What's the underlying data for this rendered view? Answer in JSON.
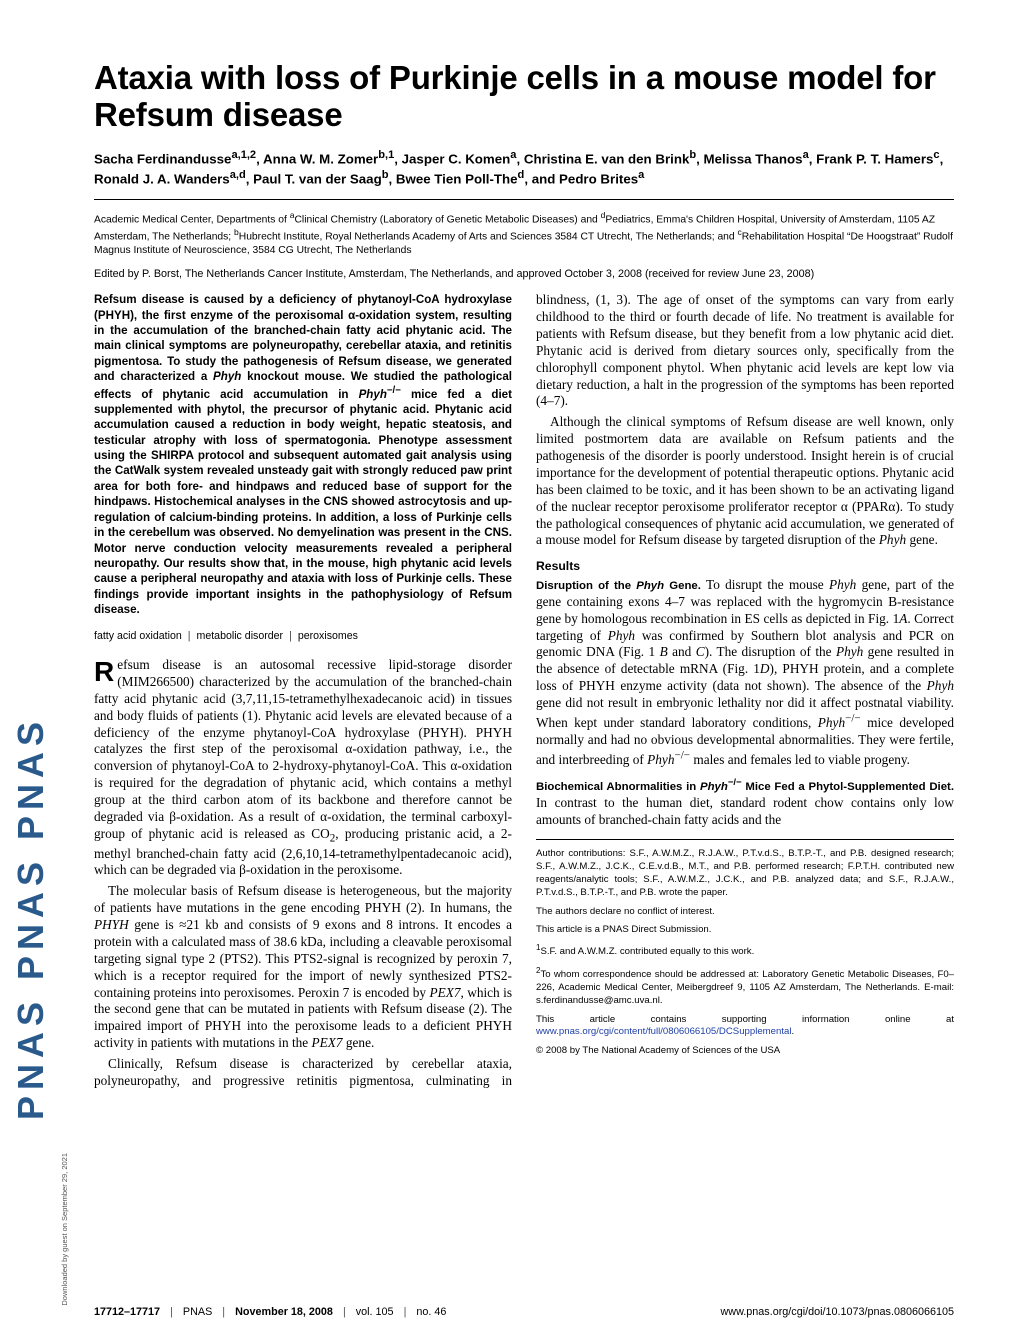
{
  "banner_text": "PNAS   PNAS   PNAS",
  "title": "Ataxia with loss of Purkinje cells in a mouse model for Refsum disease",
  "authors_html": "Sacha Ferdinandusse<sup>a,1,2</sup>, Anna W. M. Zomer<sup>b,1</sup>, Jasper C. Komen<sup>a</sup>, Christina E. van den Brink<sup>b</sup>, Melissa Thanos<sup>a</sup>, Frank P. T. Hamers<sup>c</sup>, Ronald J. A. Wanders<sup>a,d</sup>, Paul T. van der Saag<sup>b</sup>, Bwee Tien Poll-The<sup>d</sup>, and Pedro Brites<sup>a</sup>",
  "affiliations_html": "Academic Medical Center, Departments of <sup>a</sup>Clinical Chemistry (Laboratory of Genetic Metabolic Diseases) and <sup>d</sup>Pediatrics, Emma's Children Hospital, University of Amsterdam, 1105 AZ Amsterdam, The Netherlands; <sup>b</sup>Hubrecht Institute, Royal Netherlands Academy of Arts and Sciences 3584 CT Utrecht, The Netherlands; and <sup>c</sup>Rehabilitation Hospital &ldquo;De Hoogstraat&rdquo; Rudolf Magnus Institute of Neuroscience, 3584 CG Utrecht, The Netherlands",
  "edited_line": "Edited by P. Borst, The Netherlands Cancer Institute, Amsterdam, The Netherlands, and approved October 3, 2008 (received for review June 23, 2008)",
  "abstract_html": "Refsum disease is caused by a deficiency of phytanoyl-CoA hydroxylase (PHYH), the first enzyme of the peroxisomal &alpha;-oxidation system, resulting in the accumulation of the branched-chain fatty acid phytanic acid. The main clinical symptoms are polyneuropathy, cerebellar ataxia, and retinitis pigmentosa. To study the pathogenesis of Refsum disease, we generated and characterized a <i>Phyh</i> knockout mouse. We studied the pathological effects of phytanic acid accumulation in <i>Phyh</i><sup>&minus;/&minus;</sup> mice fed a diet supplemented with phytol, the precursor of phytanic acid. Phytanic acid accumulation caused a reduction in body weight, hepatic steatosis, and testicular atrophy with loss of spermatogonia. Phenotype assessment using the SHIRPA protocol and subsequent automated gait analysis using the CatWalk system revealed unsteady gait with strongly reduced paw print area for both fore- and hindpaws and reduced base of support for the hindpaws. Histochemical analyses in the CNS showed astrocytosis and up-regulation of calcium-binding proteins. In addition, a loss of Purkinje cells in the cerebellum was observed. No demyelination was present in the CNS. Motor nerve conduction velocity measurements revealed a peripheral neuropathy. Our results show that, in the mouse, high phytanic acid levels cause a peripheral neuropathy and ataxia with loss of Purkinje cells. These findings provide important insights in the pathophysiology of Refsum disease.",
  "keywords": [
    "fatty acid oxidation",
    "metabolic disorder",
    "peroxisomes"
  ],
  "body": {
    "p1_html": "<span class='dropcap'>R</span>efsum disease is an autosomal recessive lipid-storage disorder (MIM266500) characterized by the accumulation of the branched-chain fatty acid phytanic acid (3,7,11,15-tetramethylhexadecanoic acid) in tissues and body fluids of patients (1). Phytanic acid levels are elevated because of a deficiency of the enzyme phytanoyl-CoA hydroxylase (PHYH). PHYH catalyzes the first step of the peroxisomal &alpha;-oxidation pathway, i.e., the conversion of phytanoyl-CoA to 2-hydroxy-phytanoyl-CoA. This &alpha;-oxidation is required for the degradation of phytanic acid, which contains a methyl group at the third carbon atom of its backbone and therefore cannot be degraded via &beta;-oxidation. As a result of &alpha;-oxidation, the terminal carboxyl-group of phytanic acid is released as CO<sub>2</sub>, producing pristanic acid, a 2-methyl branched-chain fatty acid (2,6,10,14-tetramethylpentadecanoic acid), which can be degraded via &beta;-oxidation in the peroxisome.",
    "p2_html": "The molecular basis of Refsum disease is heterogeneous, but the majority of patients have mutations in the gene encoding PHYH (2). In humans, the <i>PHYH</i> gene is &asymp;21 kb and consists of 9 exons and 8 introns. It encodes a protein with a calculated mass of 38.6 kDa, including a cleavable peroxisomal targeting signal type 2 (PTS2). This PTS2-signal is recognized by peroxin 7, which is a receptor required for the import of newly synthesized PTS2-containing proteins into peroxisomes. Peroxin 7 is encoded by <i>PEX7</i>, which is the second gene that can be mutated in patients with Refsum disease (2). The impaired import of PHYH into the peroxisome leads to a deficient PHYH activity in patients with mutations in the <i>PEX7</i> gene.",
    "p3_html": "Clinically, Refsum disease is characterized by cerebellar ataxia, polyneuropathy, and progressive retinitis pigmentosa, culminating in blindness, (1, 3). The age of onset of the symptoms can vary from early childhood to the third or fourth decade of life. No treatment is available for patients with Refsum disease, but they benefit from a low phytanic acid diet. Phytanic acid is derived from dietary sources only, specifically from the chlorophyll component phytol. When phytanic acid levels are kept low via dietary reduction, a halt in the progression of the symptoms has been reported (4&ndash;7).",
    "p4_html": "Although the clinical symptoms of Refsum disease are well known, only limited postmortem data are available on Refsum patients and the pathogenesis of the disorder is poorly understood. Insight herein is of crucial importance for the development of potential therapeutic options. Phytanic acid has been claimed to be toxic, and it has been shown to be an activating ligand of the nuclear receptor peroxisome proliferator receptor &alpha; (PPAR&alpha;). To study the pathological consequences of phytanic acid accumulation, we generated of a mouse model for Refsum disease by targeted disruption of the <i>Phyh</i> gene.",
    "results_label": "Results",
    "sub1_label_html": "Disruption of the <i>Phyh</i> Gene.",
    "sub1_body_html": " To disrupt the mouse <i>Phyh</i> gene, part of the gene containing exons 4&ndash;7 was replaced with the hygromycin B-resistance gene by homologous recombination in ES cells as depicted in Fig. 1<i>A</i>. Correct targeting of <i>Phyh</i> was confirmed by Southern blot analysis and PCR on genomic DNA (Fig. 1 <i>B</i> and <i>C</i>). The disruption of the <i>Phyh</i> gene resulted in the absence of detectable mRNA (Fig. 1<i>D</i>), PHYH protein, and a complete loss of PHYH enzyme activity (data not shown). The absence of the <i>Phyh</i> gene did not result in embryonic lethality nor did it affect postnatal viability. When kept under standard laboratory conditions, <i>Phyh</i><sup>&minus;/&minus;</sup> mice developed normally and had no obvious developmental abnormalities. They were fertile, and interbreeding of <i>Phyh</i><sup>&minus;/&minus;</sup> males and females led to viable progeny.",
    "sub2_label_html": "Biochemical Abnormalities in <i>Phyh</i><sup>&minus;/&minus;</sup> Mice Fed a Phytol-Supplemented Diet.",
    "sub2_body_html": " In contrast to the human diet, standard rodent chow contains only low amounts of branched-chain fatty acids and the"
  },
  "footnotes": {
    "author_contrib": "Author contributions: S.F., A.W.M.Z., R.J.A.W., P.T.v.d.S., B.T.P.-T., and P.B. designed research; S.F., A.W.M.Z., J.C.K., C.E.v.d.B., M.T., and P.B. performed research; F.P.T.H. contributed new reagents/analytic tools; S.F., A.W.M.Z., J.C.K., and P.B. analyzed data; and S.F., R.J.A.W., P.T.v.d.S., B.T.P.-T., and P.B. wrote the paper.",
    "conflict": "The authors declare no conflict of interest.",
    "direct": "This article is a PNAS Direct Submission.",
    "equal": "<sup>1</sup>S.F. and A.W.M.Z. contributed equally to this work.",
    "corresp": "<sup>2</sup>To whom correspondence should be addressed at: Laboratory Genetic Metabolic Diseases, F0&ndash;226, Academic Medical Center, Meibergdreef 9, 1105 AZ Amsterdam, The Netherlands. E-mail: s.ferdinandusse@amc.uva.nl.",
    "si_html": "This article contains supporting information online at <a href='#'>www.pnas.org/cgi/content/full/0806066105/DCSupplemental</a>.",
    "copyright": "© 2008 by The National Academy of Sciences of the USA"
  },
  "footer": {
    "left_html": "<b>17712&ndash;17717</b> <span class='sep'>|</span> PNAS <span class='sep'>|</span> <b>November 18, 2008</b> <span class='sep'>|</span> vol. 105 <span class='sep'>|</span> no. 46",
    "right": "www.pnas.org/cgi/doi/10.1073/pnas.0806066105"
  },
  "download_note": "Downloaded by guest on September 29, 2021",
  "colors": {
    "link": "#2040a8",
    "pnas_blue": "#2a5a8c",
    "text": "#000000",
    "bg": "#ffffff"
  }
}
